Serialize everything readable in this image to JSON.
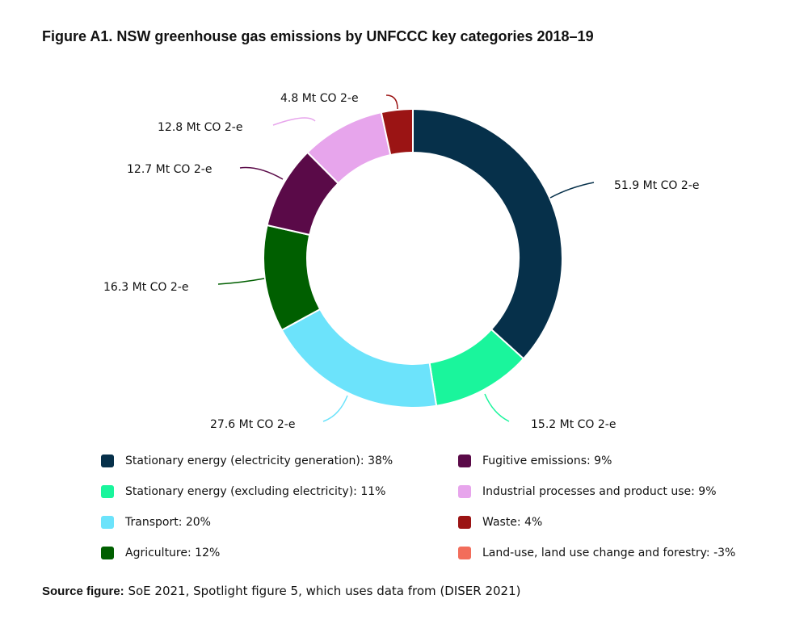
{
  "title": "Figure A1. NSW greenhouse gas emissions by UNFCCC key categories 2018–19",
  "chart_data": {
    "type": "pie",
    "donut": true,
    "title": "Figure A1. NSW greenhouse gas emissions by UNFCCC key categories 2018–19",
    "unit": "Mt CO2-e",
    "slices": [
      {
        "name": "Stationary energy (electricity generation): 38%",
        "value": 51.9,
        "label": "51.9 Mt CO 2-e",
        "color": "#06304a"
      },
      {
        "name": "Stationary energy (excluding electricity): 11%",
        "value": 15.2,
        "label": "15.2 Mt CO 2-e",
        "color": "#1af59c"
      },
      {
        "name": "Transport: 20%",
        "value": 27.6,
        "label": "27.6 Mt CO 2-e",
        "color": "#6ce3fb"
      },
      {
        "name": "Agriculture: 12%",
        "value": 16.3,
        "label": "16.3 Mt CO 2-e",
        "color": "#005f00"
      },
      {
        "name": "Fugitive emissions: 9%",
        "value": 12.7,
        "label": "12.7 Mt CO 2-e",
        "color": "#5a0a48"
      },
      {
        "name": "Industrial processes and product use: 9%",
        "value": 12.8,
        "label": "12.8 Mt CO 2-e",
        "color": "#e7a5ec"
      },
      {
        "name": "Waste: 4%",
        "value": 4.8,
        "label": "4.8 Mt CO 2-e",
        "color": "#9b1414"
      }
    ],
    "legend": [
      {
        "label": "Stationary energy (electricity generation): 38%",
        "color": "#06304a"
      },
      {
        "label": "Stationary energy (excluding electricity): 11%",
        "color": "#1af59c"
      },
      {
        "label": "Transport: 20%",
        "color": "#6ce3fb"
      },
      {
        "label": "Agriculture: 12%",
        "color": "#005f00"
      },
      {
        "label": "Fugitive emissions: 9%",
        "color": "#5a0a48"
      },
      {
        "label": "Industrial processes and product use: 9%",
        "color": "#e7a5ec"
      },
      {
        "label": "Waste: 4%",
        "color": "#9b1414"
      },
      {
        "label": "Land-use, land use change and forestry: -3%",
        "color": "#f26d5b"
      }
    ],
    "legend_position": "bottom"
  },
  "source": {
    "bold": "Source figure:",
    "text": " SoE 2021, Spotlight figure 5, which uses data from (DISER 2021)"
  }
}
